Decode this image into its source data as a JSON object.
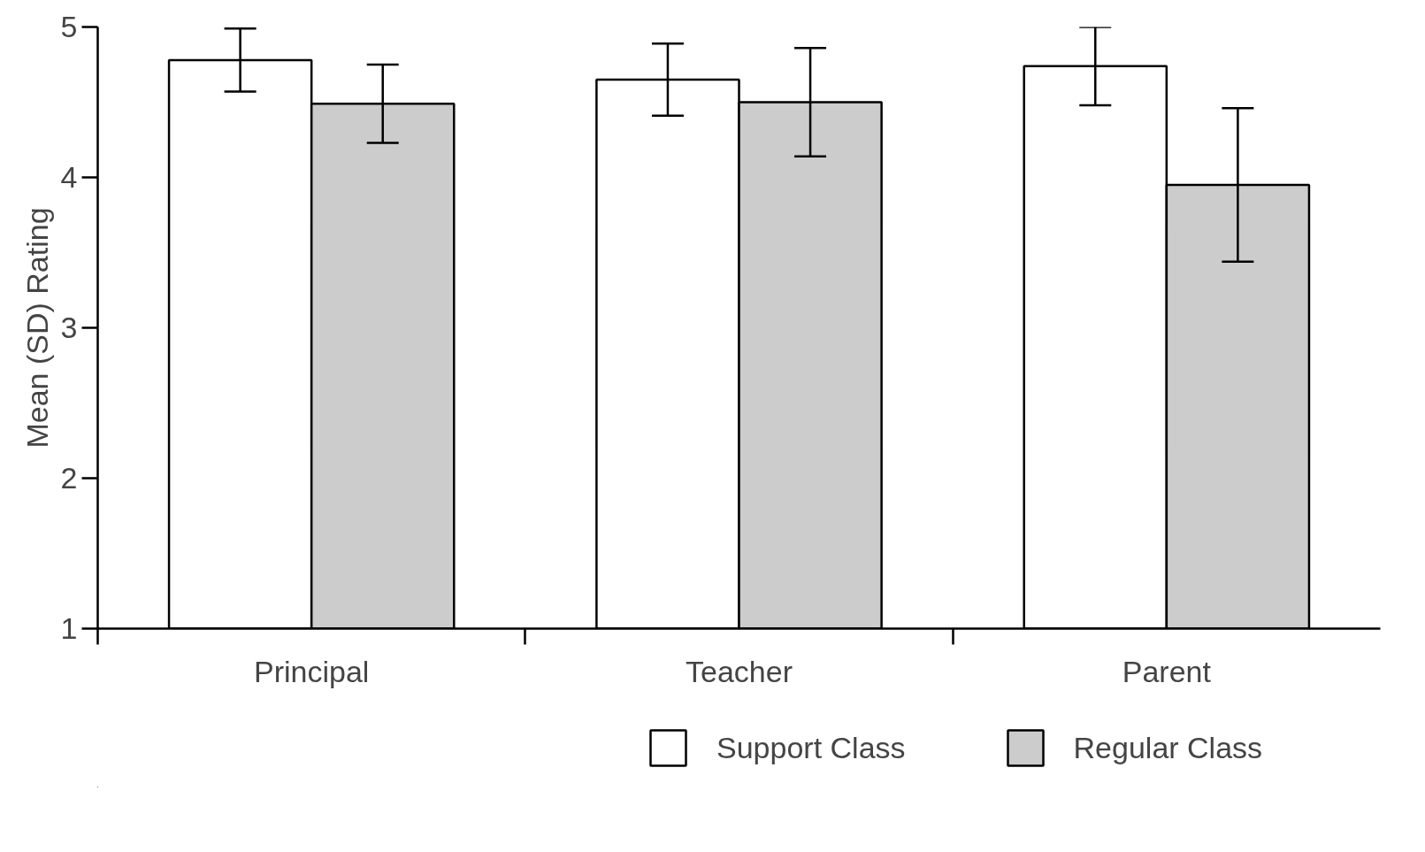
{
  "chart_data": {
    "type": "bar",
    "ylabel": "Mean (SD) Rating",
    "categories": [
      "Principal",
      "Teacher",
      "Parent"
    ],
    "series": [
      {
        "name": "Support Class",
        "color": "#ffffff",
        "values": [
          4.78,
          4.65,
          4.74
        ],
        "errors": [
          0.21,
          0.24,
          0.26
        ]
      },
      {
        "name": "Regular Class",
        "color": "#cccccc",
        "values": [
          4.49,
          4.5,
          3.95
        ],
        "errors": [
          0.26,
          0.36,
          0.51
        ]
      }
    ],
    "ylim": [
      1,
      5
    ],
    "yticks": [
      1,
      2,
      3,
      4,
      5
    ],
    "grid": false,
    "legend": "bottom"
  }
}
